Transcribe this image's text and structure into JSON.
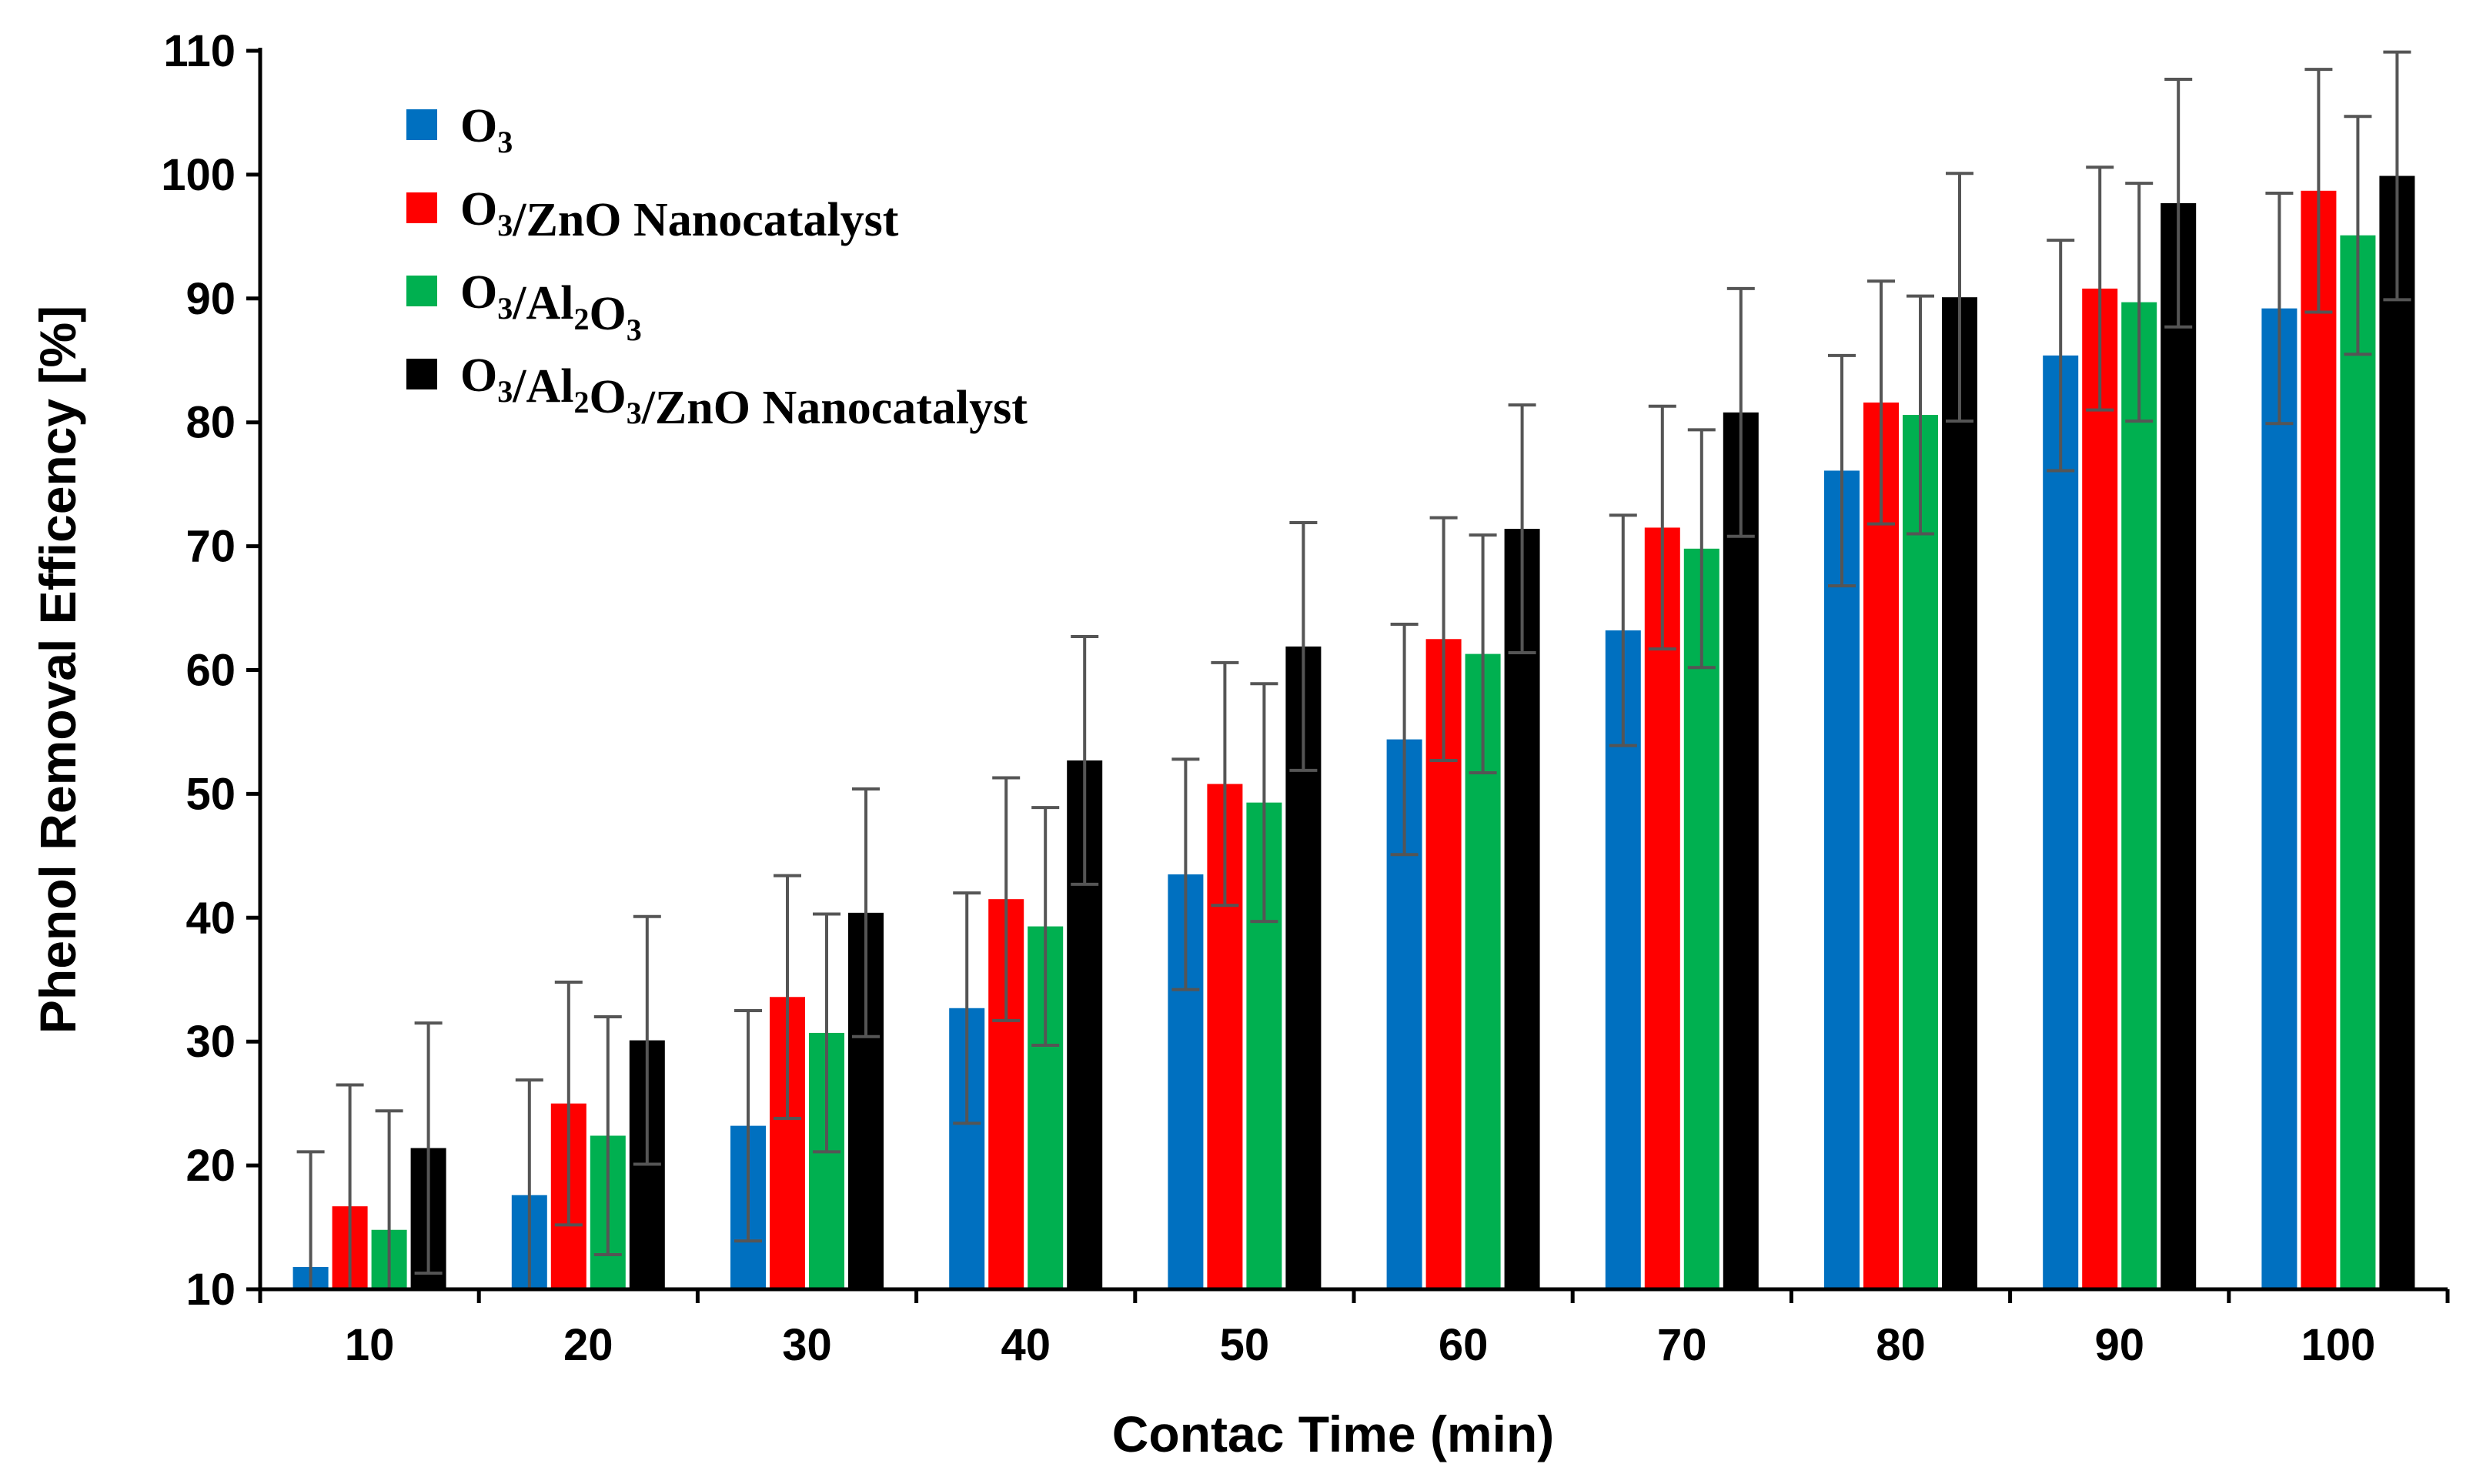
{
  "chart_data": {
    "type": "bar",
    "title": "",
    "xlabel": "Contac Time (min)",
    "ylabel": "Phenol Removal Efficency [%]",
    "ylim": [
      10,
      110
    ],
    "yticks": [
      10,
      20,
      30,
      40,
      50,
      60,
      70,
      80,
      90,
      100,
      110
    ],
    "categories": [
      "10",
      "20",
      "30",
      "40",
      "50",
      "60",
      "70",
      "80",
      "90",
      "100"
    ],
    "grid": false,
    "legend_position": "top-left",
    "series": [
      {
        "name": "O3",
        "legend_parts": [
          {
            "t": "O",
            "sub": false
          },
          {
            "t": "3",
            "sub": true
          }
        ],
        "color": "#0070C0",
        "values": [
          11.8,
          17.6,
          23.2,
          32.7,
          43.5,
          54.4,
          63.2,
          76.1,
          85.4,
          89.2
        ],
        "errors": [
          9.3,
          9.3,
          9.3,
          9.3,
          9.3,
          9.3,
          9.3,
          9.3,
          9.3,
          9.3
        ]
      },
      {
        "name": "O3/ZnO Nanocatalyst",
        "legend_parts": [
          {
            "t": "O",
            "sub": false
          },
          {
            "t": "3",
            "sub": true
          },
          {
            "t": "/ZnO Nanocatalyst",
            "sub": false
          }
        ],
        "color": "#FF0000",
        "values": [
          16.7,
          25.0,
          33.6,
          41.5,
          50.8,
          62.5,
          71.5,
          81.6,
          90.8,
          98.7
        ],
        "errors": [
          9.8,
          9.8,
          9.8,
          9.8,
          9.8,
          9.8,
          9.8,
          9.8,
          9.8,
          9.8
        ]
      },
      {
        "name": "O3/Al2O3",
        "legend_parts": [
          {
            "t": "O",
            "sub": false
          },
          {
            "t": "3",
            "sub": true
          },
          {
            "t": "/Al",
            "sub": false
          },
          {
            "t": "2",
            "sub": true
          },
          {
            "t": "O",
            "sub": false
          },
          {
            "t": "3",
            "sub": true
          }
        ],
        "color": "#00B050",
        "values": [
          14.8,
          22.4,
          30.7,
          39.3,
          49.3,
          61.3,
          69.8,
          80.6,
          89.7,
          95.1
        ],
        "errors": [
          9.6,
          9.6,
          9.6,
          9.6,
          9.6,
          9.6,
          9.6,
          9.6,
          9.6,
          9.6
        ]
      },
      {
        "name": "O3/Al2O3/ZnO Nanocatalyst",
        "legend_parts": [
          {
            "t": "O",
            "sub": false
          },
          {
            "t": "3",
            "sub": true
          },
          {
            "t": "/Al",
            "sub": false
          },
          {
            "t": "2",
            "sub": true
          },
          {
            "t": "O",
            "sub": false
          },
          {
            "t": "3",
            "sub": true
          },
          {
            "t": "/ZnO Nanocatalyst",
            "sub": false
          }
        ],
        "color": "#000000",
        "values": [
          21.4,
          30.1,
          40.4,
          52.7,
          61.9,
          71.4,
          80.8,
          90.1,
          97.7,
          99.9
        ],
        "errors": [
          10.1,
          10.0,
          10.0,
          10.0,
          10.0,
          10.0,
          10.0,
          10.0,
          10.0,
          10.0
        ]
      }
    ]
  }
}
